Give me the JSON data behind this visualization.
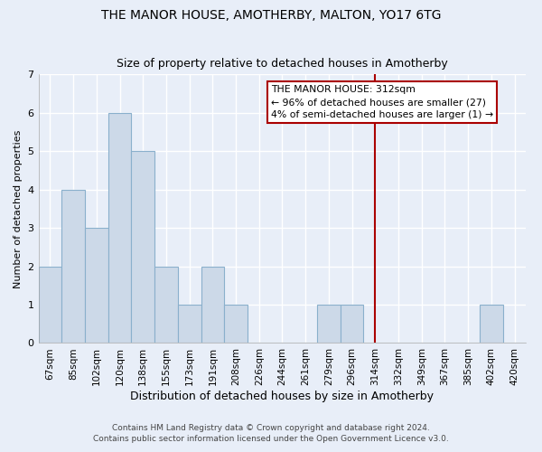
{
  "title": "THE MANOR HOUSE, AMOTHERBY, MALTON, YO17 6TG",
  "subtitle": "Size of property relative to detached houses in Amotherby",
  "xlabel": "Distribution of detached houses by size in Amotherby",
  "ylabel": "Number of detached properties",
  "bar_labels": [
    "67sqm",
    "85sqm",
    "102sqm",
    "120sqm",
    "138sqm",
    "155sqm",
    "173sqm",
    "191sqm",
    "208sqm",
    "226sqm",
    "244sqm",
    "261sqm",
    "279sqm",
    "296sqm",
    "314sqm",
    "332sqm",
    "349sqm",
    "367sqm",
    "385sqm",
    "402sqm",
    "420sqm"
  ],
  "bar_values": [
    2,
    4,
    3,
    6,
    5,
    2,
    1,
    2,
    1,
    0,
    0,
    0,
    1,
    1,
    0,
    0,
    0,
    0,
    0,
    1,
    0
  ],
  "bar_color": "#ccd9e8",
  "bar_edge_color": "#8ab0cc",
  "ylim": [
    0,
    7
  ],
  "yticks": [
    0,
    1,
    2,
    3,
    4,
    5,
    6,
    7
  ],
  "property_line_index": 14,
  "property_line_color": "#aa0000",
  "annotation_title": "THE MANOR HOUSE: 312sqm",
  "annotation_line1": "← 96% of detached houses are smaller (27)",
  "annotation_line2": "4% of semi-detached houses are larger (1) →",
  "annotation_box_facecolor": "#ffffff",
  "annotation_box_edgecolor": "#aa0000",
  "footnote1": "Contains HM Land Registry data © Crown copyright and database right 2024.",
  "footnote2": "Contains public sector information licensed under the Open Government Licence v3.0.",
  "background_color": "#e8eef8",
  "grid_color": "#ffffff",
  "title_fontsize": 10,
  "subtitle_fontsize": 9,
  "ylabel_fontsize": 8,
  "xlabel_fontsize": 9,
  "tick_fontsize": 7.5,
  "footnote_fontsize": 6.5
}
